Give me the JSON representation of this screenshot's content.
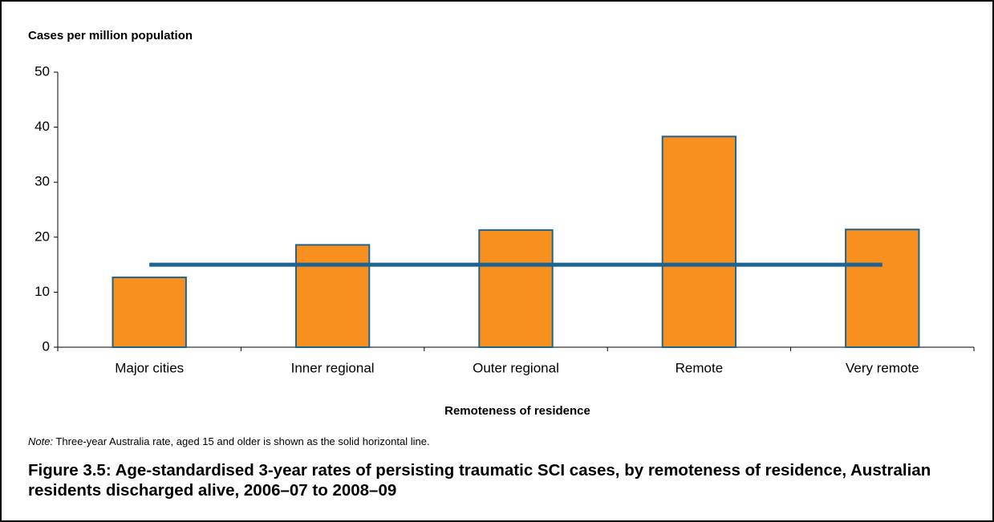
{
  "chart_data": {
    "type": "bar",
    "y_label": "Cases per million population",
    "x_label": "Remoteness of residence",
    "categories": [
      "Major cities",
      "Inner regional",
      "Outer regional",
      "Remote",
      "Very remote"
    ],
    "values": [
      12.7,
      18.6,
      21.3,
      38.3,
      21.4
    ],
    "color": "#f7901e",
    "edge_color": "#1f6391",
    "reference_line": {
      "value": 15,
      "color": "#1f6391"
    },
    "ylim": [
      0,
      50
    ],
    "yticks": [
      0,
      10,
      20,
      30,
      40,
      50
    ],
    "grid": false,
    "note": {
      "label": "Note:",
      "text": "Three-year Australia rate, aged 15 and older is shown as the solid horizontal line."
    },
    "caption": "Figure 3.5: Age-standardised 3-year rates of persisting traumatic SCI cases, by remoteness of residence, Australian residents discharged alive, 2006–07 to 2008–09"
  }
}
